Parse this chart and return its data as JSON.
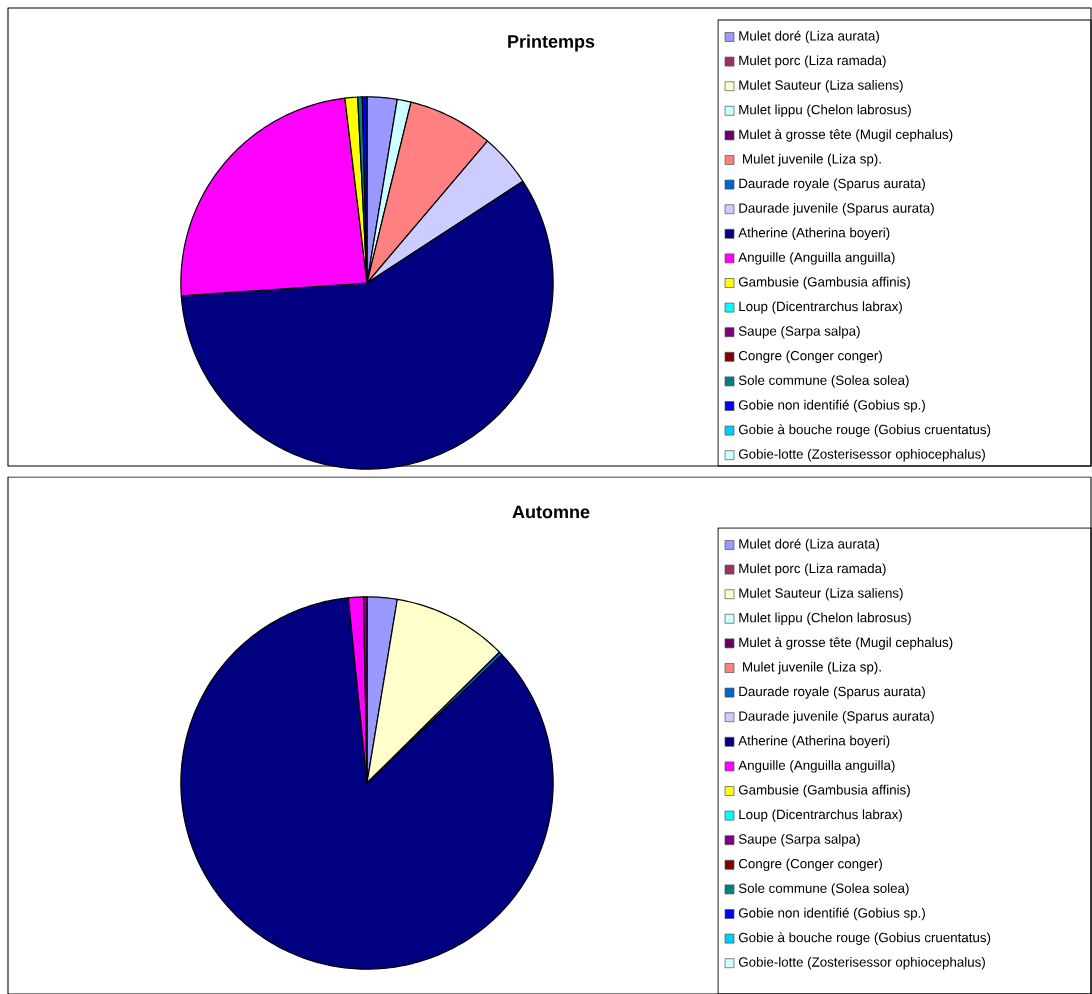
{
  "chart_data": [
    {
      "type": "pie",
      "title": "Printemps",
      "legend": "right",
      "categories": [
        "Mulet doré (Liza aurata)",
        "Mulet porc (Liza ramada)",
        "Mulet Sauteur (Liza saliens)",
        "Mulet lippu (Chelon labrosus)",
        "Mulet à grosse tête (Mugil cephalus)",
        " Mulet juvenile (Liza sp).",
        "Daurade royale (Sparus aurata)",
        "Daurade juvenile (Sparus aurata)",
        "Atherine (Atherina boyeri)",
        "Anguille (Anguilla anguilla)",
        "Gambusie (Gambusia affinis)",
        "Loup (Dicentrarchus labrax)",
        "Saupe (Sarpa salpa)",
        "Congre (Conger conger)",
        "Sole commune (Solea solea)",
        "Gobie non identifié (Gobius sp.)",
        "Gobie à bouche rouge (Gobius cruentatus)",
        "Gobie-lotte (Zosterisessor ophiocephalus)"
      ],
      "values": [
        2.6,
        0,
        0,
        1.2,
        0,
        7.4,
        0,
        4.6,
        58.1,
        24.2,
        1.1,
        0,
        0,
        0,
        0.4,
        0.4,
        0,
        0
      ],
      "colors": [
        "#9999ff",
        "#993366",
        "#ffffcc",
        "#ccffff",
        "#660066",
        "#ff8080",
        "#0066cc",
        "#ccccff",
        "#000080",
        "#ff00ff",
        "#ffff00",
        "#00ffff",
        "#800080",
        "#800000",
        "#008080",
        "#0000ff",
        "#00ccff",
        "#ccffff"
      ]
    },
    {
      "type": "pie",
      "title": "Automne",
      "legend": "right",
      "categories": [
        "Mulet doré (Liza aurata)",
        "Mulet porc (Liza ramada)",
        "Mulet Sauteur (Liza saliens)",
        "Mulet lippu (Chelon labrosus)",
        "Mulet à grosse tête (Mugil cephalus)",
        " Mulet juvenile (Liza sp).",
        "Daurade royale (Sparus aurata)",
        "Daurade juvenile (Sparus aurata)",
        "Atherine (Atherina boyeri)",
        "Anguille (Anguilla anguilla)",
        "Gambusie (Gambusia affinis)",
        "Loup (Dicentrarchus labrax)",
        "Saupe (Sarpa salpa)",
        "Congre (Conger conger)",
        "Sole commune (Solea solea)",
        "Gobie non identifié (Gobius sp.)",
        "Gobie à bouche rouge (Gobius cruentatus)",
        "Gobie-lotte (Zosterisessor ophiocephalus)"
      ],
      "values": [
        2.6,
        0,
        10.0,
        0,
        0,
        0,
        0.3,
        0,
        85.5,
        1.3,
        0,
        0,
        0.3,
        0,
        0,
        0,
        0,
        0
      ],
      "colors": [
        "#9999ff",
        "#993366",
        "#ffffcc",
        "#ccffff",
        "#660066",
        "#ff8080",
        "#0066cc",
        "#ccccff",
        "#000080",
        "#ff00ff",
        "#ffff00",
        "#00ffff",
        "#800080",
        "#800000",
        "#008080",
        "#0000ff",
        "#00ccff",
        "#ccffff"
      ]
    }
  ]
}
